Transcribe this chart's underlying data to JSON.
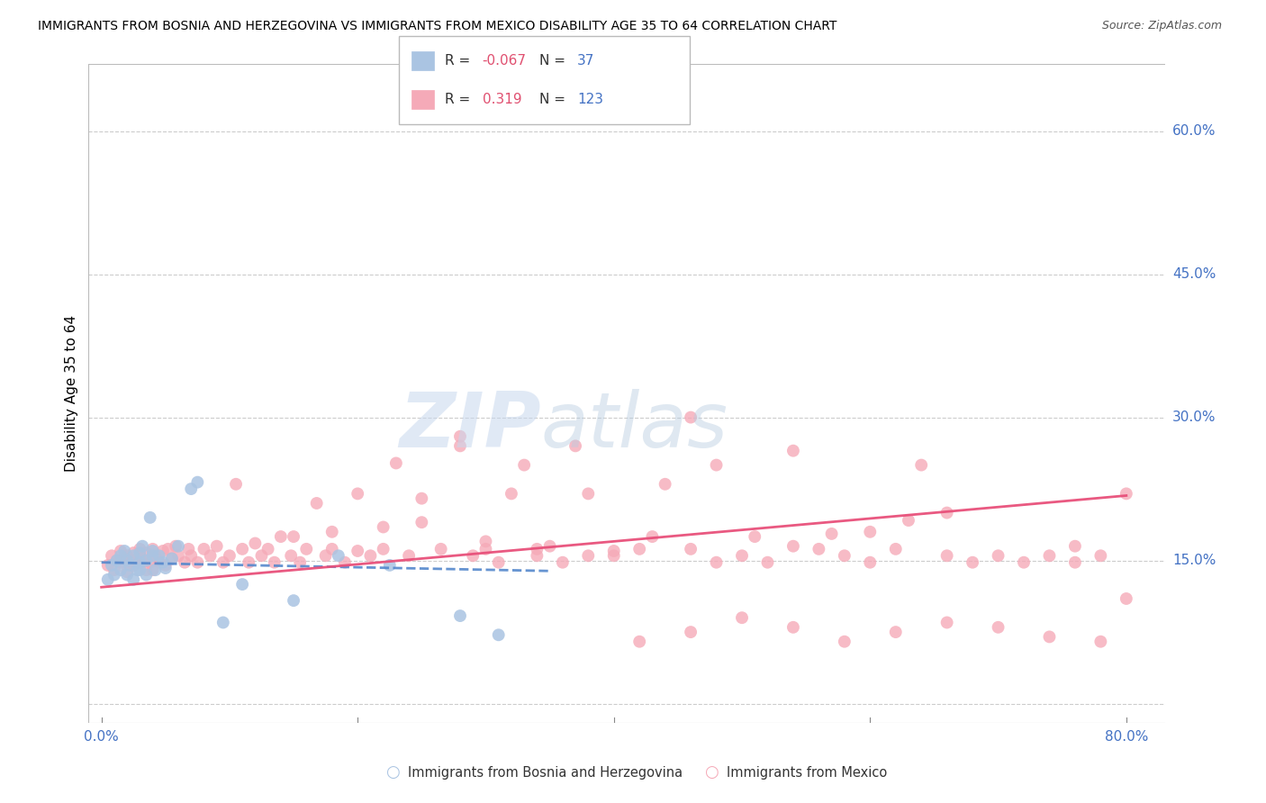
{
  "title": "IMMIGRANTS FROM BOSNIA AND HERZEGOVINA VS IMMIGRANTS FROM MEXICO DISABILITY AGE 35 TO 64 CORRELATION CHART",
  "source": "Source: ZipAtlas.com",
  "ylabel": "Disability Age 35 to 64",
  "xlabel_bosnia": "Immigrants from Bosnia and Herzegovina",
  "xlabel_mexico": "Immigrants from Mexico",
  "xlim": [
    -0.01,
    0.83
  ],
  "ylim": [
    -0.02,
    0.67
  ],
  "yticks": [
    0.0,
    0.15,
    0.3,
    0.45,
    0.6
  ],
  "ytick_labels": [
    "",
    "15.0%",
    "30.0%",
    "45.0%",
    "60.0%"
  ],
  "xticks": [
    0.0,
    0.2,
    0.4,
    0.6,
    0.8
  ],
  "legend_R_bosnia": "-0.067",
  "legend_N_bosnia": "37",
  "legend_R_mexico": "0.319",
  "legend_N_mexico": "123",
  "color_bosnia": "#aac4e2",
  "color_mexico": "#f5aab8",
  "line_color_bosnia": "#5588cc",
  "line_color_mexico": "#e8507a",
  "bosnia_x": [
    0.005,
    0.008,
    0.01,
    0.012,
    0.015,
    0.015,
    0.018,
    0.02,
    0.02,
    0.022,
    0.025,
    0.025,
    0.028,
    0.03,
    0.03,
    0.03,
    0.032,
    0.035,
    0.035,
    0.038,
    0.04,
    0.04,
    0.042,
    0.045,
    0.048,
    0.05,
    0.055,
    0.06,
    0.07,
    0.075,
    0.095,
    0.11,
    0.15,
    0.185,
    0.225,
    0.28,
    0.31
  ],
  "bosnia_y": [
    0.13,
    0.145,
    0.135,
    0.15,
    0.14,
    0.155,
    0.16,
    0.135,
    0.15,
    0.145,
    0.13,
    0.155,
    0.14,
    0.14,
    0.148,
    0.158,
    0.165,
    0.135,
    0.15,
    0.195,
    0.155,
    0.16,
    0.14,
    0.155,
    0.148,
    0.142,
    0.152,
    0.165,
    0.225,
    0.232,
    0.085,
    0.125,
    0.108,
    0.155,
    0.145,
    0.092,
    0.072
  ],
  "mexico_x": [
    0.005,
    0.008,
    0.01,
    0.012,
    0.015,
    0.015,
    0.018,
    0.02,
    0.02,
    0.022,
    0.025,
    0.025,
    0.028,
    0.03,
    0.03,
    0.032,
    0.035,
    0.035,
    0.038,
    0.04,
    0.04,
    0.042,
    0.045,
    0.048,
    0.05,
    0.052,
    0.055,
    0.058,
    0.06,
    0.065,
    0.068,
    0.07,
    0.075,
    0.08,
    0.085,
    0.09,
    0.095,
    0.1,
    0.105,
    0.11,
    0.115,
    0.12,
    0.125,
    0.13,
    0.135,
    0.14,
    0.148,
    0.155,
    0.16,
    0.168,
    0.175,
    0.18,
    0.19,
    0.2,
    0.21,
    0.22,
    0.23,
    0.24,
    0.25,
    0.265,
    0.28,
    0.29,
    0.3,
    0.31,
    0.32,
    0.34,
    0.36,
    0.38,
    0.4,
    0.42,
    0.44,
    0.46,
    0.48,
    0.5,
    0.52,
    0.54,
    0.56,
    0.58,
    0.6,
    0.62,
    0.64,
    0.66,
    0.68,
    0.7,
    0.72,
    0.74,
    0.76,
    0.78,
    0.8,
    0.34,
    0.38,
    0.42,
    0.46,
    0.5,
    0.54,
    0.58,
    0.62,
    0.66,
    0.7,
    0.74,
    0.76,
    0.78,
    0.8,
    0.15,
    0.18,
    0.2,
    0.22,
    0.25,
    0.28,
    0.3,
    0.33,
    0.35,
    0.37,
    0.4,
    0.43,
    0.46,
    0.48,
    0.51,
    0.54,
    0.57,
    0.6,
    0.63,
    0.66
  ],
  "mexico_y": [
    0.145,
    0.155,
    0.14,
    0.15,
    0.148,
    0.16,
    0.152,
    0.138,
    0.155,
    0.148,
    0.145,
    0.158,
    0.15,
    0.155,
    0.162,
    0.148,
    0.14,
    0.158,
    0.148,
    0.14,
    0.162,
    0.155,
    0.148,
    0.16,
    0.145,
    0.162,
    0.152,
    0.165,
    0.155,
    0.148,
    0.162,
    0.155,
    0.148,
    0.162,
    0.155,
    0.165,
    0.148,
    0.155,
    0.23,
    0.162,
    0.148,
    0.168,
    0.155,
    0.162,
    0.148,
    0.175,
    0.155,
    0.148,
    0.162,
    0.21,
    0.155,
    0.162,
    0.148,
    0.22,
    0.155,
    0.162,
    0.252,
    0.155,
    0.215,
    0.162,
    0.27,
    0.155,
    0.162,
    0.148,
    0.22,
    0.162,
    0.148,
    0.22,
    0.155,
    0.162,
    0.23,
    0.162,
    0.148,
    0.155,
    0.148,
    0.165,
    0.162,
    0.155,
    0.148,
    0.162,
    0.25,
    0.155,
    0.148,
    0.155,
    0.148,
    0.155,
    0.165,
    0.155,
    0.22,
    0.155,
    0.155,
    0.065,
    0.075,
    0.09,
    0.08,
    0.065,
    0.075,
    0.085,
    0.08,
    0.07,
    0.148,
    0.065,
    0.11,
    0.175,
    0.18,
    0.16,
    0.185,
    0.19,
    0.28,
    0.17,
    0.25,
    0.165,
    0.27,
    0.16,
    0.175,
    0.3,
    0.25,
    0.175,
    0.265,
    0.178,
    0.18,
    0.192,
    0.2
  ]
}
